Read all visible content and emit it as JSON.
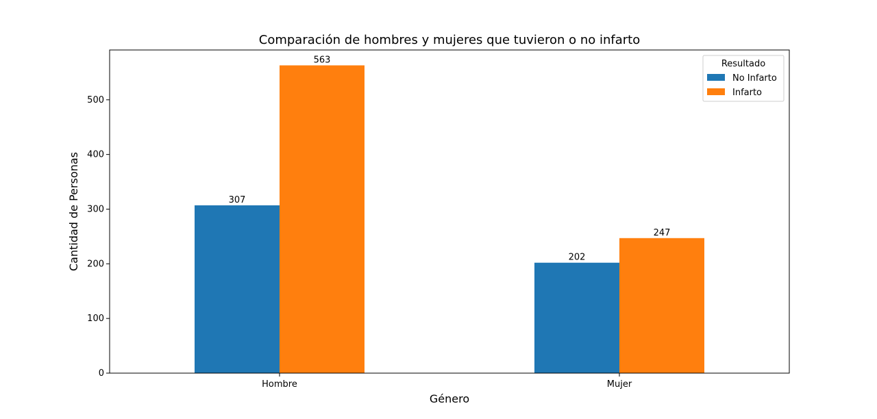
{
  "chart_data": {
    "type": "bar",
    "title": "Comparación de hombres y mujeres que tuvieron o no infarto",
    "xlabel": "Género",
    "ylabel": "Cantidad de Personas",
    "categories": [
      "Hombre",
      "Mujer"
    ],
    "series": [
      {
        "name": "No Infarto",
        "values": [
          307,
          202
        ],
        "color": "#1f77b4"
      },
      {
        "name": "Infarto",
        "values": [
          563,
          247
        ],
        "color": "#ff7f0e"
      }
    ],
    "ylim": [
      0,
      591.15
    ],
    "yticks": [
      0,
      100,
      200,
      300,
      400,
      500
    ],
    "legend": {
      "title": "Resultado",
      "placement": "top-right"
    },
    "grid": false
  }
}
